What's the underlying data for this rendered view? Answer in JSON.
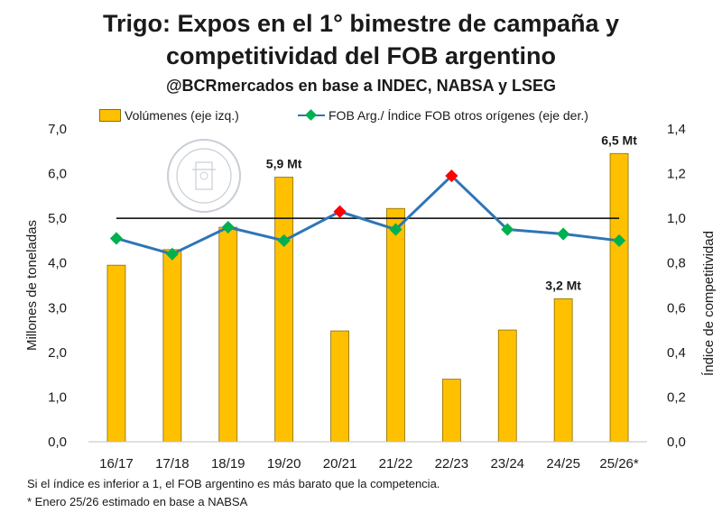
{
  "title_line1": "Trigo: Expos en el 1° bimestre de campaña y",
  "title_line2": "competitividad del FOB argentino",
  "subtitle": "@BCRmercados en base a INDEC, NABSA y LSEG",
  "footnote1": "Si el índice es inferior a 1, el FOB argentino es más barato que la competencia.",
  "footnote2": "* Enero 25/26 estimado en base a NABSA",
  "colors": {
    "bar": "#FFC000",
    "bar_border": "#8a6d00",
    "line": "#2E75B6",
    "marker": "#00B050",
    "marker_highlight": "#FF0000",
    "reference": "#000000"
  },
  "chart_data": {
    "type": "bar",
    "categories": [
      "16/17",
      "17/18",
      "18/19",
      "19/20",
      "20/21",
      "21/22",
      "22/23",
      "23/24",
      "24/25",
      "25/26*"
    ],
    "legend_position": "top",
    "grid": false,
    "ylabel": "Millones de toneladas",
    "y2label": "Índice de competitividad",
    "ylim": [
      0,
      7
    ],
    "y2lim": [
      0,
      1.4
    ],
    "yticks": [
      "0,0",
      "1,0",
      "2,0",
      "3,0",
      "4,0",
      "5,0",
      "6,0",
      "7,0"
    ],
    "y2ticks": [
      "0,0",
      "0,2",
      "0,4",
      "0,6",
      "0,8",
      "1,0",
      "1,2",
      "1,4"
    ],
    "reference_line_y2": 1.0,
    "series": [
      {
        "name": "Volúmenes (eje izq.)",
        "type": "bar",
        "axis": "left",
        "values": [
          3.95,
          4.3,
          4.8,
          5.92,
          2.48,
          5.22,
          1.4,
          2.5,
          3.2,
          6.45
        ]
      },
      {
        "name": "FOB Arg./ Índice FOB otros orígenes (eje der.)",
        "type": "line",
        "axis": "right",
        "values": [
          0.91,
          0.84,
          0.96,
          0.9,
          1.03,
          0.95,
          1.19,
          0.95,
          0.93,
          0.9
        ],
        "highlight_points": [
          4,
          6
        ]
      }
    ],
    "annotations": [
      {
        "index": 3,
        "text": "5,9 Mt"
      },
      {
        "index": 8,
        "text": "3,2 Mt"
      },
      {
        "index": 9,
        "text": "6,5 Mt"
      }
    ]
  }
}
